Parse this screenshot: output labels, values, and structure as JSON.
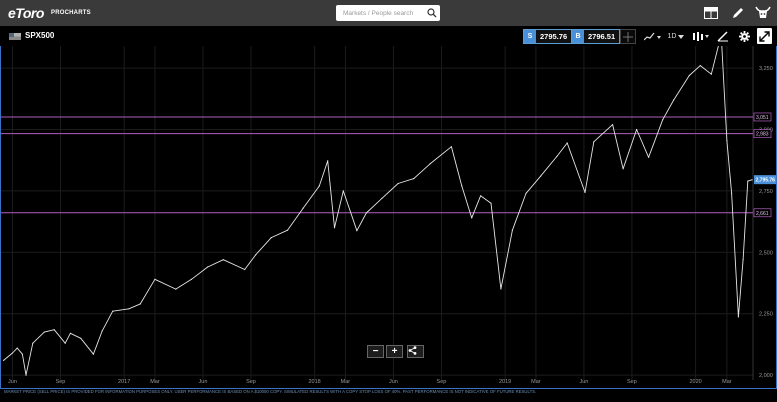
{
  "header": {
    "logo": "eToro",
    "logo_sub": "PROCHARTS",
    "search_placeholder": "Markets / People search"
  },
  "instrument": {
    "symbol": "SPX500",
    "sell_label": "S",
    "sell_price": "2795.76",
    "buy_label": "B",
    "buy_price": "2796.51",
    "timeframe": "1D"
  },
  "chart_data": {
    "type": "line",
    "title": "",
    "xlabel": "",
    "ylabel": "",
    "x_ticks": [
      "Jun",
      "Sep",
      "2017",
      "Mar",
      "Jun",
      "Sep",
      "2018",
      "Mar",
      "Jun",
      "Sep",
      "2019",
      "Mar",
      "Jun",
      "Sep",
      "2020",
      "Mar"
    ],
    "x_tick_dates": [
      "2016-06-01",
      "2016-09-01",
      "2017-01-01",
      "2017-03-01",
      "2017-06-01",
      "2017-09-01",
      "2018-01-01",
      "2018-03-01",
      "2018-06-01",
      "2018-09-01",
      "2019-01-01",
      "2019-03-01",
      "2019-06-01",
      "2019-09-01",
      "2020-01-01",
      "2020-03-01"
    ],
    "y_ticks": [
      "3,250",
      "3,000",
      "2,750",
      "2,500",
      "2,250",
      "2,000"
    ],
    "y_tick_values": [
      3250,
      3000,
      2750,
      2500,
      2250,
      2000
    ],
    "ylim": [
      1980,
      3340
    ],
    "xlim": [
      "2016-05-10",
      "2020-04-20"
    ],
    "current_price_label": "2,795.76",
    "current_price": 2795.76,
    "horizontal_lines": [
      {
        "label": "3,051",
        "value": 3051
      },
      {
        "label": "2,983",
        "value": 2983
      },
      {
        "label": "2,661",
        "value": 2661
      }
    ],
    "series": [
      {
        "x": [
          "2016-05-15",
          "2016-06-01",
          "2016-06-10",
          "2016-06-20",
          "2016-06-27",
          "2016-07-10",
          "2016-08-01",
          "2016-08-20",
          "2016-09-10",
          "2016-09-20",
          "2016-10-10",
          "2016-11-03",
          "2016-11-20",
          "2016-12-10",
          "2017-01-10",
          "2017-02-01",
          "2017-03-01",
          "2017-04-10",
          "2017-05-10",
          "2017-06-10",
          "2017-07-10",
          "2017-08-20",
          "2017-09-10",
          "2017-10-10",
          "2017-11-10",
          "2017-12-10",
          "2018-01-10",
          "2018-01-26",
          "2018-02-08",
          "2018-02-25",
          "2018-03-23",
          "2018-04-10",
          "2018-05-10",
          "2018-06-10",
          "2018-07-10",
          "2018-08-10",
          "2018-09-20",
          "2018-10-10",
          "2018-10-29",
          "2018-11-15",
          "2018-12-05",
          "2018-12-24",
          "2019-01-15",
          "2019-02-10",
          "2019-03-10",
          "2019-04-10",
          "2019-04-30",
          "2019-06-03",
          "2019-06-20",
          "2019-07-26",
          "2019-08-15",
          "2019-09-10",
          "2019-10-03",
          "2019-10-30",
          "2019-11-20",
          "2019-12-20",
          "2020-01-10",
          "2020-01-31",
          "2020-02-19",
          "2020-03-01",
          "2020-03-10",
          "2020-03-23",
          "2020-04-01",
          "2020-04-10",
          "2020-04-18"
        ],
        "values": [
          2060,
          2090,
          2110,
          2085,
          2000,
          2130,
          2175,
          2185,
          2130,
          2170,
          2150,
          2085,
          2180,
          2260,
          2270,
          2290,
          2390,
          2350,
          2390,
          2440,
          2470,
          2430,
          2490,
          2560,
          2590,
          2680,
          2770,
          2872,
          2600,
          2750,
          2588,
          2660,
          2720,
          2780,
          2800,
          2860,
          2930,
          2770,
          2640,
          2730,
          2700,
          2351,
          2590,
          2740,
          2810,
          2890,
          2945,
          2744,
          2950,
          3020,
          2840,
          3000,
          2887,
          3040,
          3120,
          3220,
          3260,
          3225,
          3386,
          2954,
          2741,
          2237,
          2470,
          2790,
          2795
        ]
      }
    ]
  },
  "zoom": {
    "minus": "−",
    "plus": "+"
  },
  "disclaimer": "MARKET PRICE (SELL PRICE) IS PROVIDED FOR INFORMATION PURPOSES ONLY. USER PERFORMANCE IS BASED ON A $10000 COPY. SIMULATED RESULTS WITH A COPY STOP LOSS OF 40%. PAST PERFORMANCE IS NOT INDICATIVE OF FUTURE RESULTS.",
  "colors": {
    "accent_blue": "#4a90d9",
    "level_line": "#b05fc0",
    "price_line": "#e6e6e6"
  }
}
